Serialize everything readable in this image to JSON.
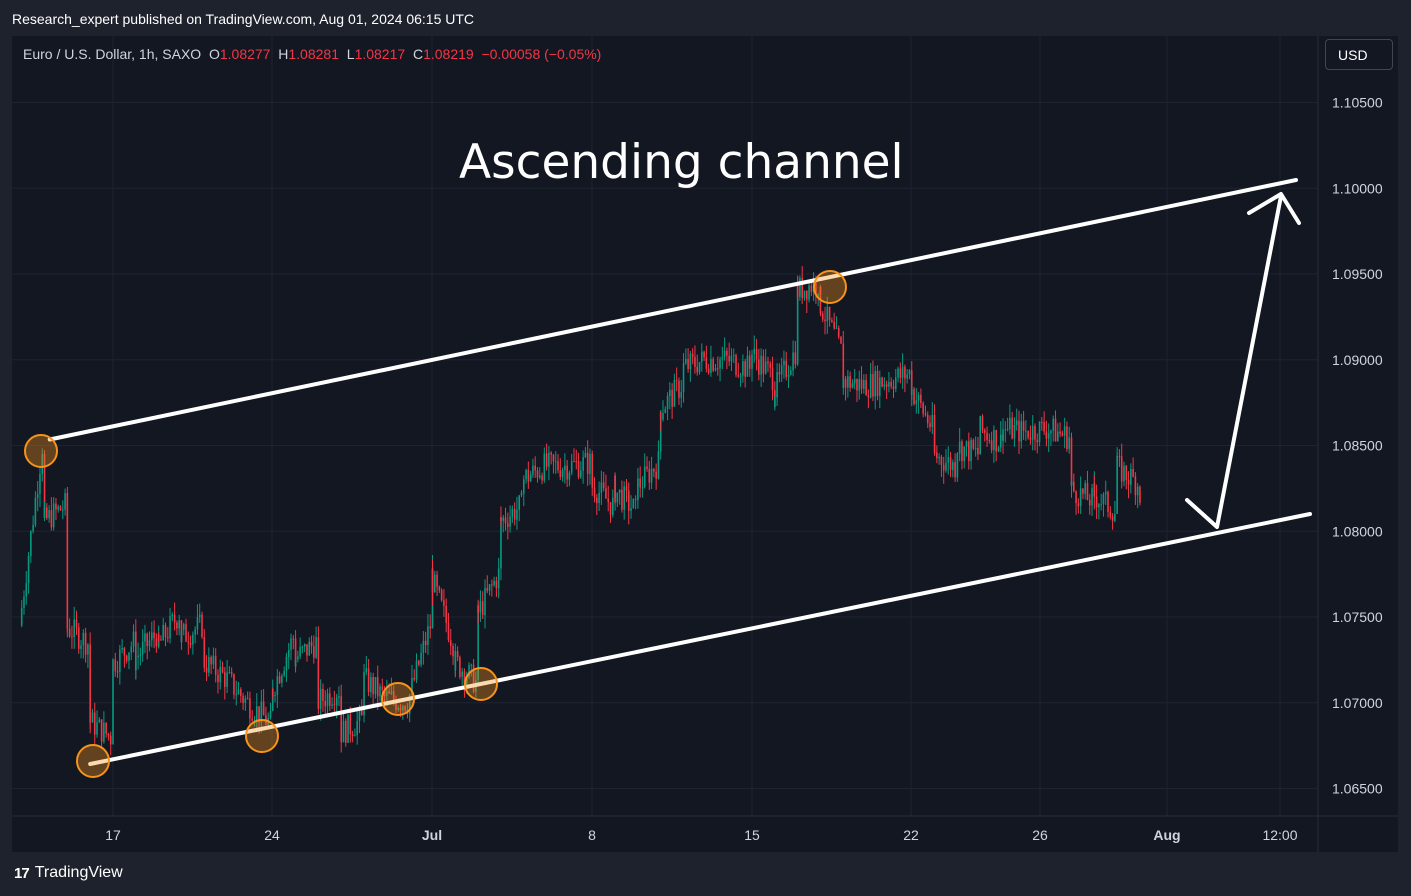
{
  "header": {
    "caption": "Research_expert published on TradingView.com, Aug 01, 2024 06:15 UTC"
  },
  "legend": {
    "symbol": "Euro / U.S. Dollar, 1h, SAXO",
    "o_label": "O",
    "o_value": "1.08277",
    "h_label": "H",
    "h_value": "1.08281",
    "l_label": "L",
    "l_value": "1.08217",
    "c_label": "C",
    "c_value": "1.08219",
    "change": "−0.00058 (−0.05%)"
  },
  "currency_button": "USD",
  "footer": {
    "logo_text": "TradingView",
    "logo_icon": "tradingview-logo-icon"
  },
  "colors": {
    "background": "#131722",
    "up": "#089981",
    "down": "#f23645",
    "annotation": "#ffffff",
    "marker": "#f7931a"
  },
  "chart_data": {
    "type": "candlestick",
    "title": "Ascending channel",
    "xlabel": "",
    "ylabel": "",
    "y_ticks": [
      "1.10500",
      "1.10000",
      "1.09500",
      "1.09000",
      "1.08500",
      "1.08000",
      "1.07500",
      "1.07000",
      "1.06500"
    ],
    "ylim": [
      1.0625,
      1.1075
    ],
    "x_ticks": [
      "17",
      "24",
      "Jul",
      "8",
      "15",
      "22",
      "26",
      "Aug",
      "12:00"
    ],
    "grid": true,
    "series": [
      {
        "points": [
          [
            "Jun 13",
            1.0745
          ],
          [
            "Jun 14",
            1.085
          ],
          [
            "Jun 14",
            1.0805
          ],
          [
            "Jun 15",
            1.0815
          ],
          [
            "Jun 15",
            1.0745
          ],
          [
            "Jun 16",
            1.0735
          ],
          [
            "Jun 16",
            1.069
          ],
          [
            "Jun 17",
            1.068
          ],
          [
            "Jun 17",
            1.0722
          ],
          [
            "Jun 18",
            1.0735
          ],
          [
            "Jun 18",
            1.0725
          ],
          [
            "Jun 19",
            1.074
          ],
          [
            "Jun 19",
            1.0732
          ],
          [
            "Jun 20",
            1.0752
          ],
          [
            "Jun 20",
            1.0738
          ],
          [
            "Jun 21",
            1.0745
          ],
          [
            "Jun 21",
            1.0725
          ],
          [
            "Jun 22",
            1.0715
          ],
          [
            "Jun 23",
            1.07
          ],
          [
            "Jun 24",
            1.0688
          ],
          [
            "Jun 24",
            1.0705
          ],
          [
            "Jun 25",
            1.0738
          ],
          [
            "Jun 25",
            1.0725
          ],
          [
            "Jun 26",
            1.0735
          ],
          [
            "Jun 26",
            1.07
          ],
          [
            "Jun 27",
            1.0708
          ],
          [
            "Jun 27",
            1.0682
          ],
          [
            "Jun 28",
            1.069
          ],
          [
            "Jun 28",
            1.0715
          ],
          [
            "Jun 29",
            1.0703
          ],
          [
            "Jun 30",
            1.07
          ],
          [
            "Jul 1",
            1.0745
          ],
          [
            "Jul 1",
            1.0775
          ],
          [
            "Jul 2",
            1.0735
          ],
          [
            "Jul 2",
            1.0725
          ],
          [
            "Jul 3",
            1.0712
          ],
          [
            "Jul 3",
            1.075
          ],
          [
            "Jul 4",
            1.0775
          ],
          [
            "Jul 4",
            1.0805
          ],
          [
            "Jul 5",
            1.0815
          ],
          [
            "Jul 5",
            1.083
          ],
          [
            "Jul 6",
            1.0838
          ],
          [
            "Jul 7",
            1.0838
          ],
          [
            "Jul 8",
            1.084
          ],
          [
            "Jul 8",
            1.0828
          ],
          [
            "Jul 9",
            1.0815
          ],
          [
            "Jul 9",
            1.0825
          ],
          [
            "Jul 10",
            1.0812
          ],
          [
            "Jul 10",
            1.0825
          ],
          [
            "Jul 11",
            1.084
          ],
          [
            "Jul 11",
            1.087
          ],
          [
            "Jul 12",
            1.0885
          ],
          [
            "Jul 12",
            1.0895
          ],
          [
            "Jul 13",
            1.09
          ],
          [
            "Jul 14",
            1.09
          ],
          [
            "Jul 15",
            1.0895
          ],
          [
            "Jul 15",
            1.0905
          ],
          [
            "Jul 16",
            1.089
          ],
          [
            "Jul 16",
            1.088
          ],
          [
            "Jul 17",
            1.0905
          ],
          [
            "Jul 17",
            1.094
          ],
          [
            "Jul 18",
            1.0945
          ],
          [
            "Jul 18",
            1.0935
          ],
          [
            "Jul 19",
            1.0905
          ],
          [
            "Jul 19",
            1.0888
          ],
          [
            "Jul 20",
            1.0885
          ],
          [
            "Jul 21",
            1.0888
          ],
          [
            "Jul 22",
            1.0892
          ],
          [
            "Jul 22",
            1.0885
          ],
          [
            "Jul 23",
            1.086
          ],
          [
            "Jul 23",
            1.0845
          ],
          [
            "Jul 24",
            1.0838
          ],
          [
            "Jul 24",
            1.085
          ],
          [
            "Jul 25",
            1.0845
          ],
          [
            "Jul 25",
            1.086
          ],
          [
            "Jul 26",
            1.0852
          ],
          [
            "Jul 26",
            1.086
          ],
          [
            "Jul 27",
            1.0858
          ],
          [
            "Jul 28",
            1.086
          ],
          [
            "Jul 29",
            1.0855
          ],
          [
            "Jul 29",
            1.0825
          ],
          [
            "Jul 30",
            1.0818
          ],
          [
            "Jul 30",
            1.0822
          ],
          [
            "Jul 31",
            1.0812
          ],
          [
            "Jul 31",
            1.0838
          ],
          [
            "Aug 1",
            1.0828
          ],
          [
            "Aug 1",
            1.0822
          ]
        ]
      }
    ],
    "annotations": {
      "channel_upper": [
        [
          "Jun 13",
          1.085
        ],
        [
          "Aug 1 12:00",
          1.1005
        ]
      ],
      "channel_lower": [
        [
          "Jun 16",
          1.0665
        ],
        [
          "Aug 1 12:00",
          1.0812
        ]
      ],
      "touch_points": [
        [
          "Jun 13",
          1.0848
        ],
        [
          "Jun 16",
          1.0665
        ],
        [
          "Jun 24",
          1.0682
        ],
        [
          "Jun 30",
          1.0702
        ],
        [
          "Jul 3",
          1.0712
        ],
        [
          "Jul 18",
          1.0944
        ]
      ]
    }
  }
}
